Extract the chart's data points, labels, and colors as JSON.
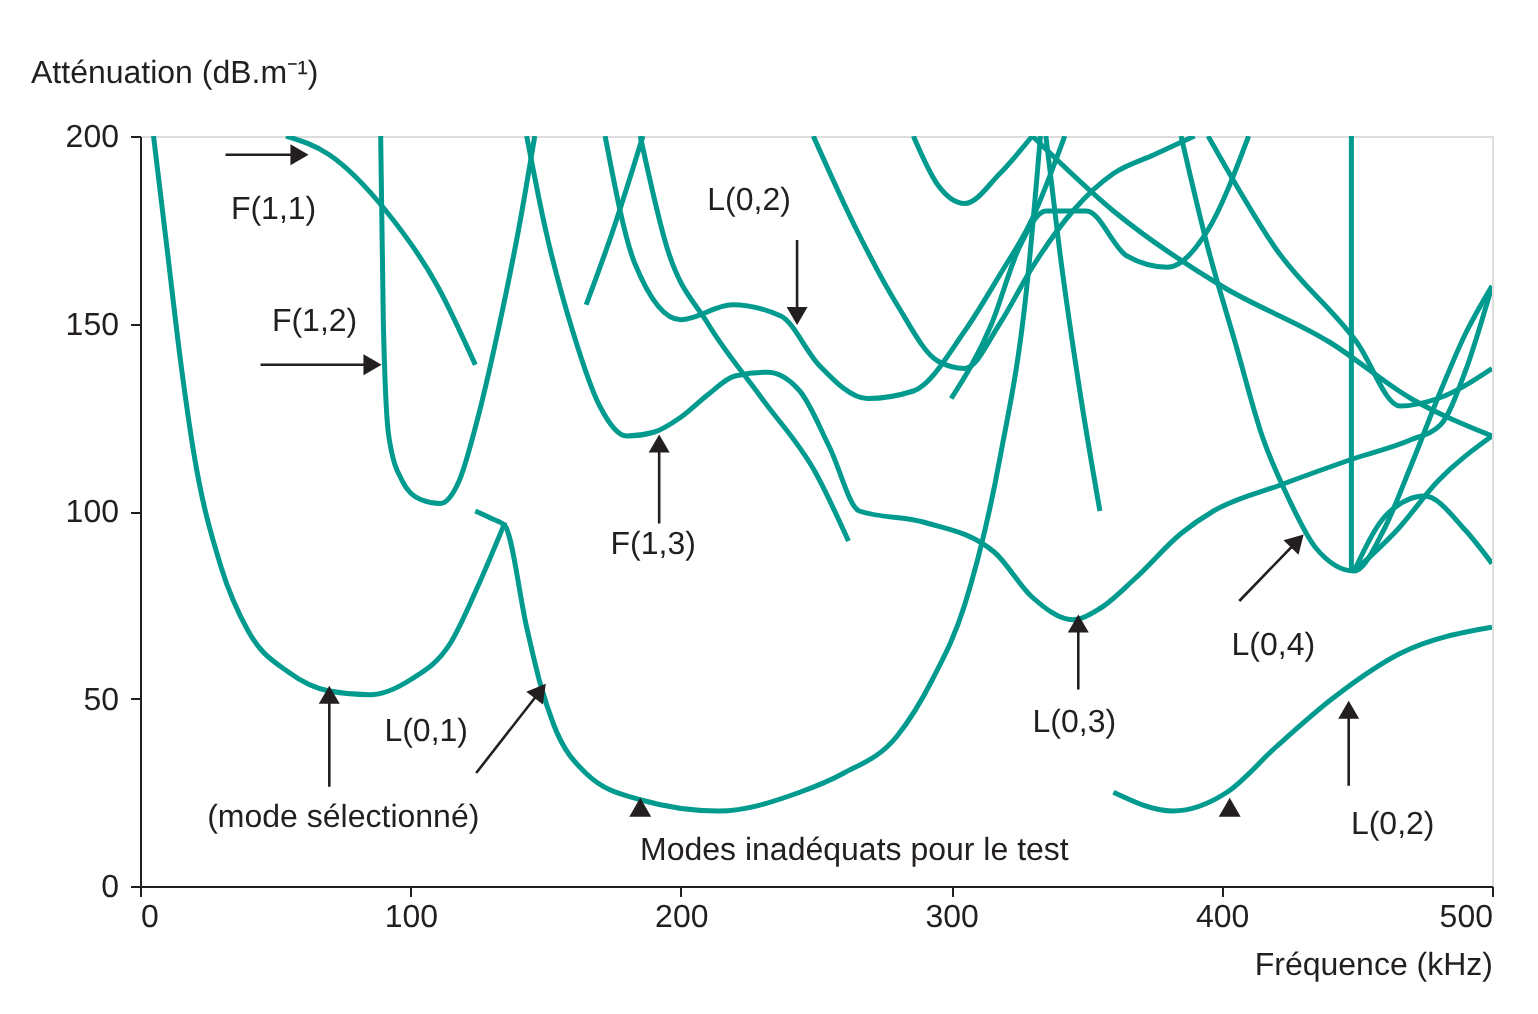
{
  "chart_data": {
    "type": "line",
    "xlabel": "Fréquence (kHz)",
    "ylabel": "Atténuation (dB.m⁻¹)",
    "xlim": [
      0,
      500
    ],
    "ylim": [
      0,
      200
    ],
    "xticks": [
      0,
      100,
      200,
      300,
      400,
      500
    ],
    "yticks": [
      0,
      50,
      100,
      150,
      200
    ],
    "grid": false,
    "line_style": "solid",
    "series": [
      {
        "color": "#009b8e",
        "x": [
          5,
          10,
          15,
          20,
          30,
          40,
          55,
          70,
          85,
          100,
          115,
          125,
          135
        ],
        "values": [
          200,
          170,
          140,
          115,
          85,
          68,
          57,
          52,
          51,
          55,
          65,
          80,
          97
        ]
      },
      {
        "color": "#009b8e",
        "x": [
          124,
          130,
          135,
          143,
          148,
          153,
          165,
          185,
          214,
          244,
          260,
          280,
          293,
          305,
          318,
          328,
          333
        ],
        "values": [
          100,
          98,
          96,
          69,
          54,
          43,
          30,
          23,
          20,
          25,
          30,
          40,
          55,
          75,
          114,
          160,
          200
        ]
      },
      {
        "color": "#009b8e",
        "x": [
          143,
          150,
          160,
          170,
          180,
          190,
          200,
          210,
          220,
          232,
          244,
          255,
          266,
          290,
          316,
          330,
          345,
          355,
          368,
          385,
          397,
          422,
          449,
          470,
          481,
          490,
          500
        ],
        "values": [
          200,
          175,
          148,
          128,
          120,
          121,
          125,
          131,
          136,
          137,
          132,
          117,
          100,
          97,
          89,
          77,
          71,
          74,
          82,
          94,
          100,
          107,
          114,
          119,
          123,
          137,
          160
        ]
      },
      {
        "color": "#009b8e",
        "x": [
          172,
          183,
          200,
          219,
          237,
          251,
          269,
          286,
          305,
          318,
          330,
          342
        ],
        "values": [
          200,
          166,
          151,
          155,
          152,
          139,
          130,
          132,
          148,
          163,
          178,
          200
        ]
      },
      {
        "color": "#009b8e",
        "x": [
          54,
          70,
          91,
          110,
          124
        ],
        "values": [
          200,
          195,
          180,
          160,
          139
        ]
      },
      {
        "color": "#009b8e",
        "x": [
          89,
          90,
          92,
          97,
          104,
          111,
          118,
          125,
          133,
          140,
          146
        ],
        "values": [
          200,
          150,
          120,
          108,
          103,
          102,
          108,
          125,
          150,
          175,
          200
        ]
      },
      {
        "color": "#009b8e",
        "x": [
          165,
          175,
          186
        ],
        "values": [
          155,
          175,
          200
        ]
      },
      {
        "color": "#009b8e",
        "x": [
          185,
          195,
          210,
          230,
          250,
          262
        ],
        "values": [
          200,
          170,
          150,
          130,
          110,
          92
        ]
      },
      {
        "color": "#009b8e",
        "x": [
          249,
          265,
          280,
          295,
          305,
          318,
          330,
          345,
          360,
          375,
          390
        ],
        "values": [
          200,
          175,
          155,
          140,
          138,
          150,
          165,
          180,
          190,
          195,
          200
        ]
      },
      {
        "color": "#009b8e",
        "x": [
          286,
          295,
          305,
          318,
          330
        ],
        "values": [
          200,
          187,
          182,
          190,
          200
        ]
      },
      {
        "color": "#009b8e",
        "x": [
          300,
          315,
          325,
          335,
          350,
          365,
          380,
          395,
          410
        ],
        "values": [
          130,
          150,
          170,
          180,
          180,
          168,
          165,
          175,
          200
        ]
      },
      {
        "color": "#009b8e",
        "x": [
          335,
          340,
          348,
          355
        ],
        "values": [
          200,
          170,
          130,
          100
        ]
      },
      {
        "color": "#009b8e",
        "x": [
          385,
          395,
          405,
          415,
          425,
          435,
          449,
          460,
          470,
          481,
          490,
          500
        ],
        "values": [
          200,
          170,
          145,
          120,
          103,
          90,
          84,
          95,
          112,
          132,
          147,
          160
        ]
      },
      {
        "color": "#009b8e",
        "x": [
          448,
          448
        ],
        "values": [
          200,
          84
        ]
      },
      {
        "color": "#009b8e",
        "x": [
          449,
          461,
          475,
          490,
          500
        ],
        "values": [
          84,
          99,
          104,
          95,
          86
        ]
      },
      {
        "color": "#009b8e",
        "x": [
          449,
          465,
          480,
          500
        ],
        "values": [
          84,
          95,
          108,
          120
        ]
      },
      {
        "color": "#009b8e",
        "x": [
          330,
          360,
          400,
          440,
          470,
          500
        ],
        "values": [
          200,
          180,
          160,
          145,
          130,
          120
        ]
      },
      {
        "color": "#009b8e",
        "x": [
          395,
          420,
          450,
          466,
          480,
          500
        ],
        "values": [
          200,
          170,
          145,
          128,
          130,
          138
        ]
      },
      {
        "color": "#009b8e",
        "x": [
          360,
          382,
          402,
          420,
          441,
          466,
          500
        ],
        "values": [
          25,
          20,
          25,
          37,
          50,
          62,
          69
        ]
      },
      {
        "type": "scatter",
        "marker": "triangle",
        "color": "#231f20",
        "x": [
          185,
          403
        ],
        "values": [
          21,
          21
        ]
      }
    ],
    "annotations": [
      {
        "text": "F(1,1)",
        "x": 59,
        "y": 195
      },
      {
        "text": "F(1,2)",
        "x": 86,
        "y": 139
      },
      {
        "text": "L(0,2)",
        "x": 243,
        "y": 152
      },
      {
        "text": "F(1,3)",
        "x": 192,
        "y": 118
      },
      {
        "text": "L(0,1)",
        "x": 148,
        "y": 52
      },
      {
        "text": "(mode sélectionné)",
        "x": 70,
        "y": 51
      },
      {
        "text": "L(0,3)",
        "x": 347,
        "y": 70
      },
      {
        "text": "L(0,4)",
        "x": 428,
        "y": 92
      },
      {
        "text": "L(0,2)",
        "x": 447,
        "y": 47
      },
      "Modes inadéquats pour le test"
    ]
  }
}
